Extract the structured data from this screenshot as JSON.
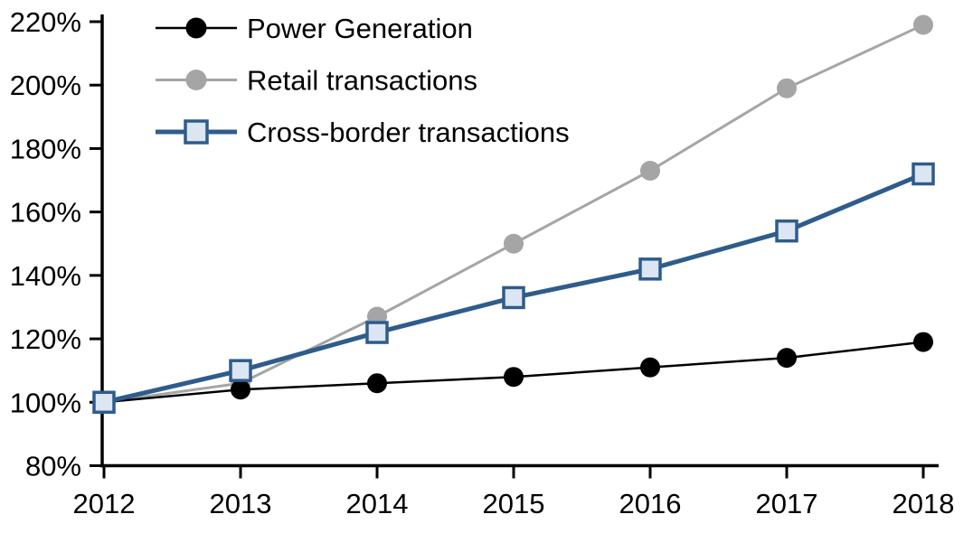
{
  "chart_data": {
    "type": "line",
    "title": "",
    "xlabel": "",
    "ylabel": "",
    "grid": false,
    "background_color": "#FFFFFF",
    "axis_color": "#000000",
    "ylim": [
      80,
      220
    ],
    "y_axis": {
      "min": 80,
      "max": 220,
      "step": 20,
      "unit": "%",
      "tick_labels": [
        "80%",
        "100%",
        "120%",
        "140%",
        "160%",
        "180%",
        "200%",
        "220%"
      ],
      "tick_values": [
        80,
        100,
        120,
        140,
        160,
        180,
        200,
        220
      ]
    },
    "x_axis": {
      "tick_labels": [
        "2012",
        "2013",
        "2014",
        "2015",
        "2016",
        "2017",
        "2018"
      ]
    },
    "categories": [
      "2012",
      "2013",
      "2014",
      "2015",
      "2016",
      "2017",
      "2018"
    ],
    "series": [
      {
        "name": "Power Generation",
        "marker": "circle",
        "line_color": "#000000",
        "marker_color": "#000000",
        "marker_border": "#000000",
        "line_width": 2.5,
        "values": [
          100,
          104,
          106,
          108,
          111,
          114,
          119
        ]
      },
      {
        "name": "Retail transactions",
        "marker": "circle",
        "line_color": "#A5A5A5",
        "marker_color": "#A5A5A5",
        "marker_border": "#A5A5A5",
        "line_width": 3,
        "values": [
          100,
          106,
          127,
          150,
          173,
          199,
          219
        ]
      },
      {
        "name": "Cross-border transactions",
        "marker": "square",
        "line_color": "#2E5C8C",
        "marker_color": "#DCE6F2",
        "marker_border": "#2E5C8C",
        "line_width": 5,
        "values": [
          100,
          110,
          122,
          133,
          142,
          154,
          172
        ]
      }
    ],
    "legend": {
      "position": "top-left-inside",
      "entries": [
        "Power Generation",
        "Retail transactions",
        "Cross-border transactions"
      ]
    }
  }
}
